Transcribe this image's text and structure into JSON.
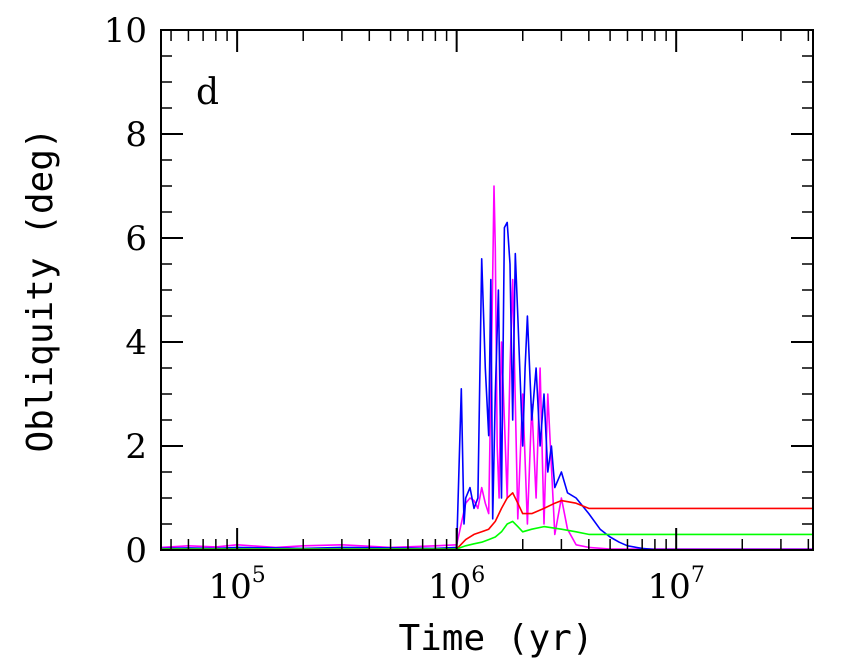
{
  "chart_data": {
    "type": "line",
    "panel_label": "d",
    "xlabel": "Time (yr)",
    "ylabel": "Obliquity (deg)",
    "xscale": "log",
    "xlim": [
      45000,
      42000000
    ],
    "ylim": [
      0,
      10
    ],
    "yticks": [
      0,
      2,
      4,
      6,
      8,
      10
    ],
    "ytick_labels": [
      "0",
      "2",
      "4",
      "6",
      "8",
      "10"
    ],
    "xticks": [
      {
        "value": 100000,
        "base": "10",
        "exp": "5"
      },
      {
        "value": 1000000,
        "base": "10",
        "exp": "6"
      },
      {
        "value": 10000000,
        "base": "10",
        "exp": "7"
      }
    ],
    "grid": false,
    "series": [
      {
        "color": "#ff00ff",
        "x": [
          45000,
          60000,
          80000,
          100000,
          150000,
          200000,
          300000,
          500000,
          800000,
          1000000,
          1100000,
          1150000,
          1200000,
          1250000,
          1300000,
          1350000,
          1400000,
          1450000,
          1480000,
          1500000,
          1530000,
          1560000,
          1600000,
          1650000,
          1700000,
          1750000,
          1800000,
          1900000,
          2000000,
          2100000,
          2200000,
          2300000,
          2400000,
          2500000,
          2600000,
          2800000,
          3000000,
          3200000,
          3500000,
          4000000,
          5000000,
          6000000,
          8000000,
          10000000,
          20000000,
          42000000
        ],
        "y": [
          0.05,
          0.08,
          0.06,
          0.1,
          0.05,
          0.08,
          0.1,
          0.05,
          0.08,
          0.1,
          0.9,
          1.0,
          0.95,
          0.8,
          1.2,
          0.9,
          0.7,
          4.5,
          7.0,
          5.8,
          2.0,
          1.0,
          4.0,
          2.5,
          1.0,
          3.5,
          5.2,
          0.6,
          3.0,
          0.5,
          2.8,
          1.0,
          3.5,
          0.5,
          3.0,
          0.3,
          1.0,
          0.4,
          0.1,
          0.05,
          0.02,
          0.02,
          0.02,
          0.02,
          0.02,
          0.02
        ]
      },
      {
        "color": "#0000ff",
        "x": [
          45000,
          60000,
          80000,
          100000,
          150000,
          200000,
          300000,
          500000,
          800000,
          1000000,
          1050000,
          1080000,
          1100000,
          1150000,
          1200000,
          1250000,
          1300000,
          1350000,
          1400000,
          1430000,
          1460000,
          1500000,
          1550000,
          1600000,
          1650000,
          1700000,
          1750000,
          1800000,
          1850000,
          1900000,
          2000000,
          2050000,
          2100000,
          2200000,
          2300000,
          2400000,
          2500000,
          2600000,
          2700000,
          2800000,
          3000000,
          3200000,
          3500000,
          4000000,
          4500000,
          5000000,
          5500000,
          6000000,
          7000000,
          8000000,
          10000000,
          20000000,
          42000000
        ],
        "y": [
          0.03,
          0.04,
          0.03,
          0.05,
          0.04,
          0.03,
          0.05,
          0.04,
          0.03,
          0.05,
          3.1,
          0.5,
          1.0,
          1.2,
          0.8,
          1.0,
          5.6,
          3.5,
          2.2,
          5.2,
          0.6,
          3.0,
          5.0,
          1.0,
          6.2,
          6.3,
          5.5,
          2.5,
          5.7,
          4.5,
          2.0,
          3.5,
          4.5,
          2.5,
          3.5,
          2.0,
          3.0,
          1.5,
          2.0,
          1.2,
          1.5,
          1.1,
          1.0,
          0.7,
          0.4,
          0.25,
          0.15,
          0.08,
          0.03,
          0.01,
          0.01,
          0.01,
          0.01
        ]
      },
      {
        "color": "#ff0000",
        "x": [
          45000,
          100000,
          500000,
          1000000,
          1100000,
          1200000,
          1300000,
          1400000,
          1500000,
          1600000,
          1700000,
          1800000,
          1900000,
          2000000,
          2200000,
          2500000,
          2800000,
          3000000,
          3500000,
          4000000,
          5000000,
          7000000,
          10000000,
          20000000,
          42000000
        ],
        "y": [
          0.02,
          0.02,
          0.02,
          0.02,
          0.2,
          0.3,
          0.35,
          0.4,
          0.55,
          0.8,
          1.0,
          1.1,
          0.9,
          0.7,
          0.7,
          0.8,
          0.9,
          0.95,
          0.9,
          0.8,
          0.8,
          0.8,
          0.8,
          0.8,
          0.8
        ]
      },
      {
        "color": "#00ff00",
        "x": [
          45000,
          100000,
          500000,
          1000000,
          1100000,
          1200000,
          1300000,
          1400000,
          1500000,
          1600000,
          1700000,
          1800000,
          1900000,
          2000000,
          2200000,
          2500000,
          3000000,
          3500000,
          4000000,
          5000000,
          7000000,
          10000000,
          20000000,
          42000000
        ],
        "y": [
          0.02,
          0.02,
          0.02,
          0.02,
          0.08,
          0.12,
          0.15,
          0.2,
          0.25,
          0.35,
          0.5,
          0.55,
          0.45,
          0.35,
          0.4,
          0.45,
          0.4,
          0.35,
          0.3,
          0.3,
          0.3,
          0.3,
          0.3,
          0.3
        ]
      }
    ]
  }
}
